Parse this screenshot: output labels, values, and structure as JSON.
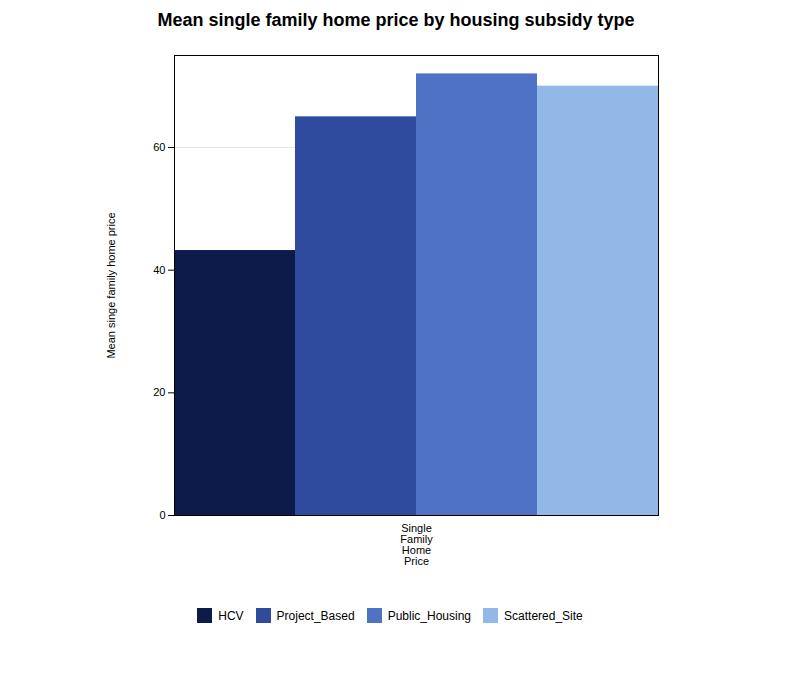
{
  "chart_data": {
    "type": "bar",
    "title": "Mean single family home price by housing subsidy type",
    "ylabel": "Mean singe family home price",
    "categories": [
      "Single\nFamily\nHome\nPrice"
    ],
    "series": [
      {
        "name": "HCV",
        "color": "#0d1b4b",
        "values": [
          43.2
        ]
      },
      {
        "name": "Project_Based",
        "color": "#2e4b9e",
        "values": [
          65.0
        ]
      },
      {
        "name": "Public_Housing",
        "color": "#4f72c4",
        "values": [
          72.0
        ]
      },
      {
        "name": "Scattered_Site",
        "color": "#92b8e8",
        "values": [
          70.0
        ]
      }
    ],
    "ylim": [
      0,
      75
    ],
    "yticks": [
      0,
      20,
      40,
      60
    ],
    "grid": true,
    "legend": "bottom"
  }
}
